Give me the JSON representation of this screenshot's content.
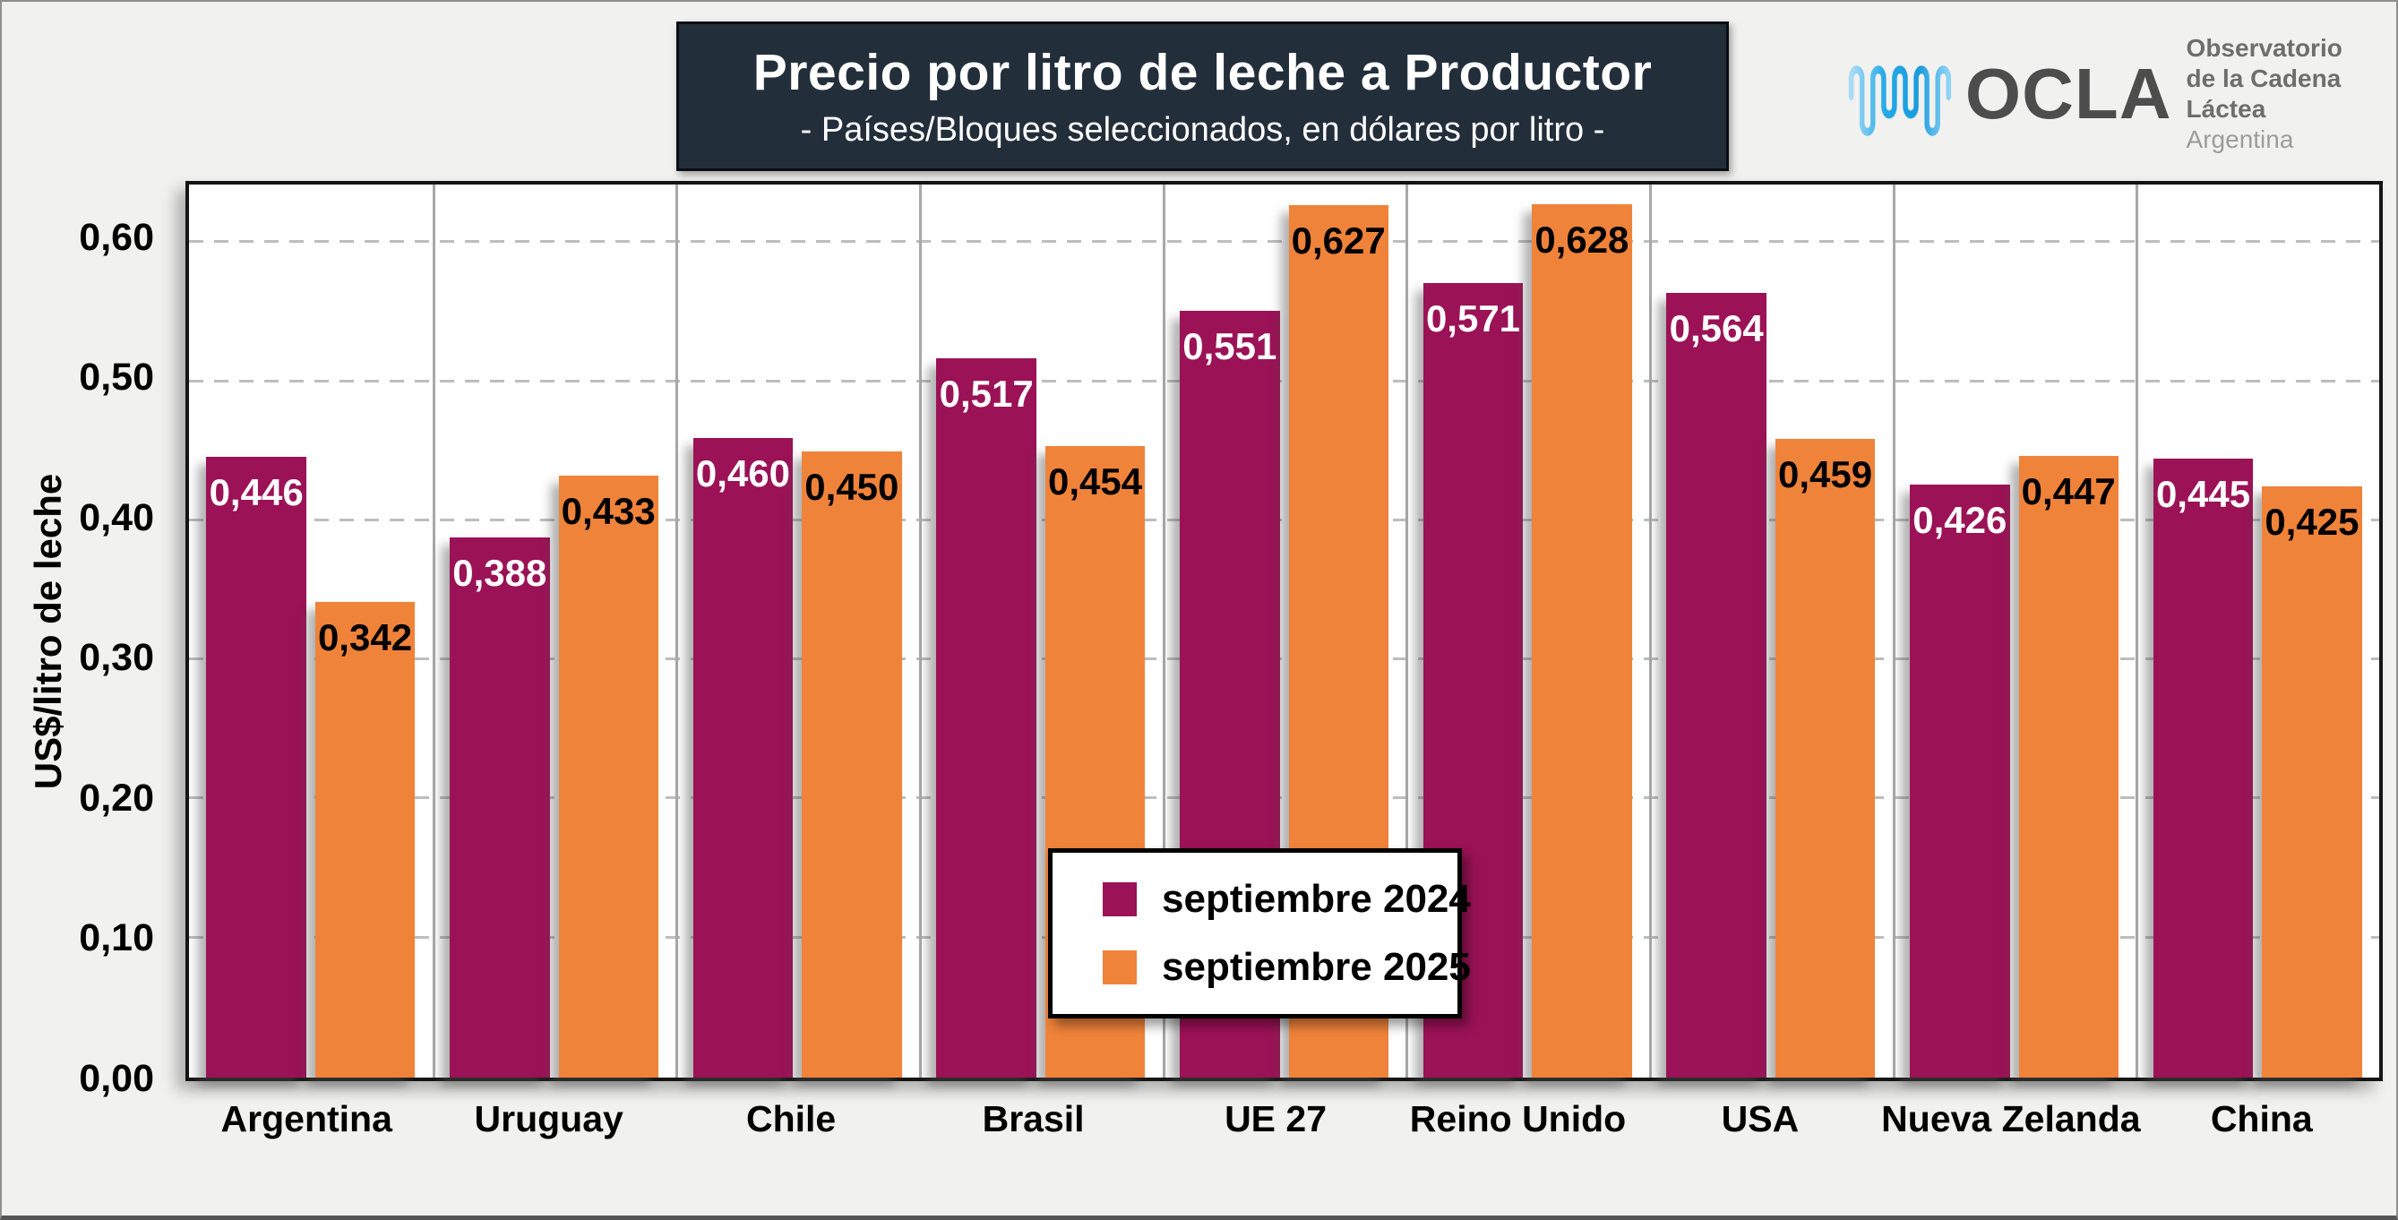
{
  "header": {
    "title": "Precio por litro de leche a Productor",
    "subtitle": "- Países/Bloques seleccionados, en dólares por litro -"
  },
  "logo": {
    "brand": "OCLA",
    "org_line1": "Observatorio",
    "org_line2": "de la Cadena Láctea",
    "org_line3": "Argentina",
    "icon": "milk-wave-icon",
    "icon_color_start": "#A9DDF6",
    "icon_color_mid": "#24A9E6",
    "icon_color_end": "#8FD4F4",
    "brand_color": "#4D4D4D",
    "org_text_color": "#6E6E6E",
    "country_color": "#9C9C9C"
  },
  "colors": {
    "page_bg": "#F1F1F0",
    "plot_bg": "#FFFFFF",
    "title_bg": "#232E3B",
    "title_text": "#FFFFFF",
    "gridline": "#BDBDBD",
    "category_separator": "#A8A8A8",
    "plot_border": "#151515",
    "axis_text": "#000000"
  },
  "chart_data": {
    "type": "bar",
    "title": "Precio por litro de leche a Productor",
    "subtitle": "- Países/Bloques seleccionados, en dólares por litro -",
    "xlabel": "",
    "ylabel": "US$/litro de leche",
    "ylim": [
      0,
      0.642
    ],
    "grid": "horizontal dashed gridlines at 0,10 steps; solid vertical category separators",
    "legend_position": "inside bottom-center",
    "yticks": [
      {
        "value": 0.0,
        "label": "0,00"
      },
      {
        "value": 0.1,
        "label": "0,10"
      },
      {
        "value": 0.2,
        "label": "0,20"
      },
      {
        "value": 0.3,
        "label": "0,30"
      },
      {
        "value": 0.4,
        "label": "0,40"
      },
      {
        "value": 0.5,
        "label": "0,50"
      },
      {
        "value": 0.6,
        "label": "0,60"
      }
    ],
    "categories": [
      "Argentina",
      "Uruguay",
      "Chile",
      "Brasil",
      "UE 27",
      "Reino Unido",
      "USA",
      "Nueva Zelanda",
      "China"
    ],
    "series": [
      {
        "name": "septiembre 2024",
        "color": "#9B1256",
        "label_color": "#FFFFFF",
        "values": [
          0.446,
          0.388,
          0.46,
          0.517,
          0.551,
          0.571,
          0.564,
          0.426,
          0.445
        ],
        "labels": [
          "0,446",
          "0,388",
          "0,460",
          "0,517",
          "0,551",
          "0,571",
          "0,564",
          "0,426",
          "0,445"
        ]
      },
      {
        "name": "septiembre 2025",
        "color": "#F0833A",
        "label_color": "#000000",
        "values": [
          0.342,
          0.433,
          0.45,
          0.454,
          0.627,
          0.628,
          0.459,
          0.447,
          0.425
        ],
        "labels": [
          "0,342",
          "0,433",
          "0,450",
          "0,454",
          "0,627",
          "0,628",
          "0,459",
          "0,447",
          "0,425"
        ]
      }
    ]
  }
}
